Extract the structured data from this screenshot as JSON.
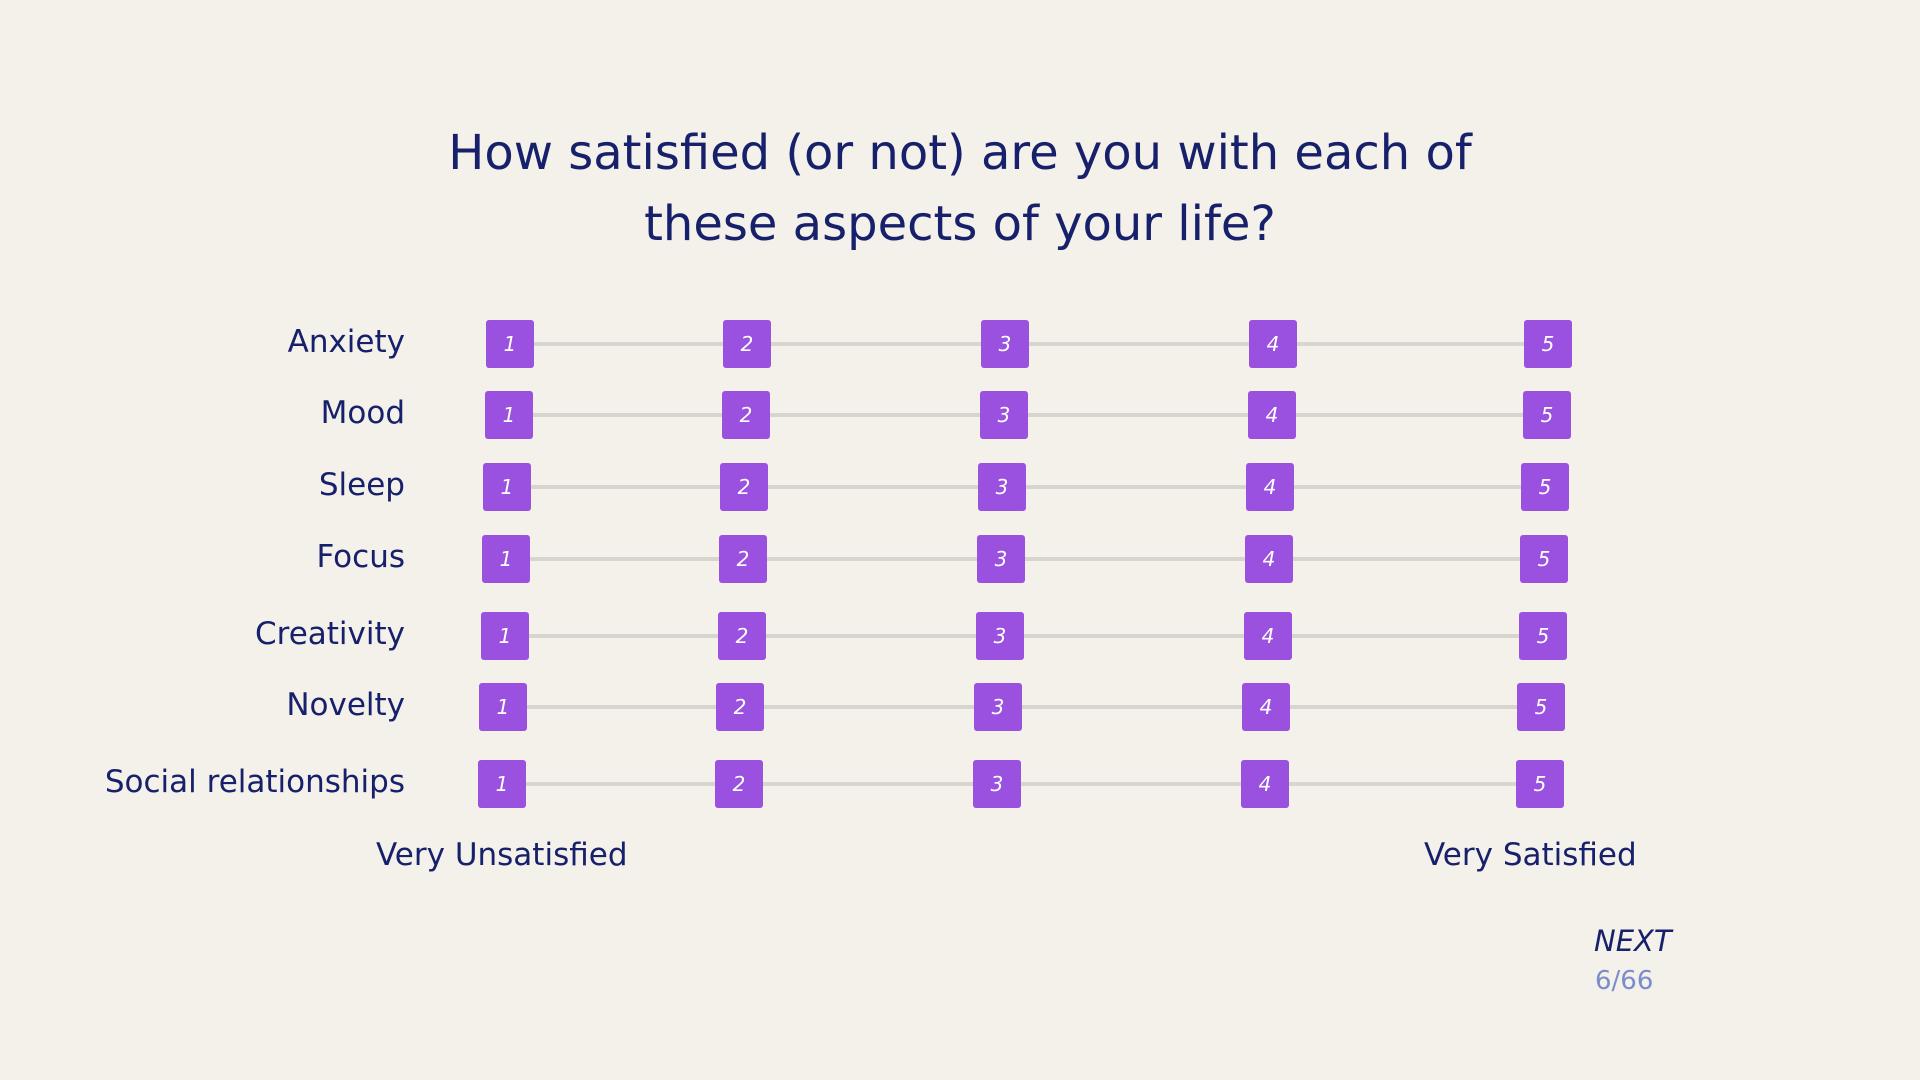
{
  "question": {
    "line1": "How satisfied (or not) are you with each of",
    "line2": "these aspects of your life?"
  },
  "options": [
    "1",
    "2",
    "3",
    "4",
    "5"
  ],
  "rows": [
    {
      "label": "Anxiety"
    },
    {
      "label": "Mood"
    },
    {
      "label": "Sleep"
    },
    {
      "label": "Focus"
    },
    {
      "label": "Creativity"
    },
    {
      "label": "Novelty"
    },
    {
      "label": "Social relationships"
    }
  ],
  "scale": {
    "min_label": "Very Unsatisfied",
    "max_label": "Very Satisfied"
  },
  "nav": {
    "next_label": "NEXT",
    "progress": "6/66"
  },
  "colors": {
    "background": "#f4f0ea",
    "text": "#17206a",
    "option_fill": "#9b51e0",
    "track": "#d8d5d1",
    "progress_text": "#7b8ccc"
  }
}
